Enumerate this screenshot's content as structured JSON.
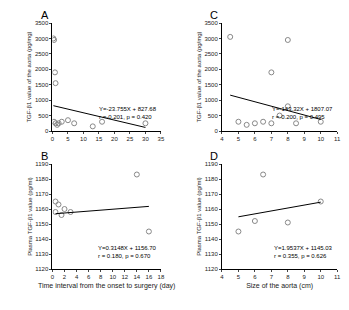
{
  "chart_data": [
    {
      "type": "scatter",
      "title": "A",
      "color": "#888888",
      "marker": "circle-open",
      "y_label": "TGF-β1 value of the aorta (pg/mg)",
      "x": [
        0.3,
        0.5,
        0.8,
        1,
        0.5,
        1,
        1.5,
        2,
        3,
        5,
        7,
        13,
        16,
        30
      ],
      "values": [
        3000,
        2950,
        1900,
        1550,
        300,
        250,
        200,
        250,
        300,
        350,
        250,
        150,
        300,
        250
      ],
      "fit": {
        "slope": -23.755,
        "intercept": 827.68
      },
      "annotation": [
        "Y=-23.755X + 827.68",
        "r =-0.201, p = 0.420"
      ],
      "xlim": [
        0,
        35
      ],
      "xticks": [
        0,
        5,
        10,
        15,
        20,
        25,
        30,
        35
      ],
      "ylim": [
        0,
        3500
      ],
      "yticks": [
        0,
        500,
        1000,
        1500,
        2000,
        2500,
        3000,
        3500
      ]
    },
    {
      "type": "scatter",
      "title": "B",
      "color": "#888888",
      "marker": "circle-open",
      "x_label": "Time interval from the onset to surgery (day)",
      "y_label": "Plasma TGF-β1 value (pg/ml)",
      "x": [
        0.5,
        1,
        0.5,
        1.5,
        2,
        3,
        14,
        16
      ],
      "values": [
        1158,
        1163,
        1165,
        1156,
        1160,
        1158,
        1183,
        1145
      ],
      "fit": {
        "slope": 0.3148,
        "intercept": 1156.7
      },
      "annotation": [
        "Y=0.3148X + 1156.70",
        "r = 0.180, p = 0.670"
      ],
      "xlim": [
        0,
        18
      ],
      "xticks": [
        0,
        2,
        4,
        6,
        8,
        10,
        12,
        14,
        16,
        18
      ],
      "ylim": [
        1120,
        1190
      ],
      "yticks": [
        1120,
        1130,
        1140,
        1150,
        1160,
        1170,
        1180,
        1190
      ]
    },
    {
      "type": "scatter",
      "title": "C",
      "color": "#888888",
      "marker": "circle-open",
      "y_label": "TGF-β1 value of the aorta (pg/mg)",
      "x": [
        4.5,
        8,
        7,
        5,
        5.5,
        6,
        6.5,
        7,
        7.5,
        8,
        8.5,
        10
      ],
      "values": [
        3050,
        2950,
        1900,
        300,
        200,
        250,
        300,
        250,
        500,
        800,
        250,
        300
      ],
      "fit": {
        "slope": -143.32,
        "intercept": 1807.07
      },
      "annotation": [
        "Y=-143.32X + 1807.07",
        "r =-0.200, p = 0.495"
      ],
      "xlim": [
        4,
        11
      ],
      "xticks": [
        4,
        5,
        6,
        7,
        8,
        9,
        10,
        11
      ],
      "ylim": [
        0,
        3500
      ],
      "yticks": [
        0,
        500,
        1000,
        1500,
        2000,
        2500,
        3000,
        3500
      ]
    },
    {
      "type": "scatter",
      "title": "D",
      "color": "#888888",
      "marker": "circle-open",
      "x_label": "Size of the aorta (cm)",
      "y_label": "Plasma TGF-β1 value (pg/ml)",
      "x": [
        5,
        6,
        6.5,
        8,
        10
      ],
      "values": [
        1145,
        1152,
        1183,
        1151,
        1165
      ],
      "fit": {
        "slope": 1.9537,
        "intercept": 1145.03
      },
      "annotation": [
        "Y=1.9537X + 1145.03",
        "r = 0.355, p = 0.626"
      ],
      "xlim": [
        4,
        11
      ],
      "xticks": [
        4,
        5,
        6,
        7,
        8,
        9,
        10,
        11
      ],
      "ylim": [
        1120,
        1190
      ],
      "yticks": [
        1120,
        1130,
        1140,
        1150,
        1160,
        1170,
        1180,
        1190
      ]
    }
  ]
}
